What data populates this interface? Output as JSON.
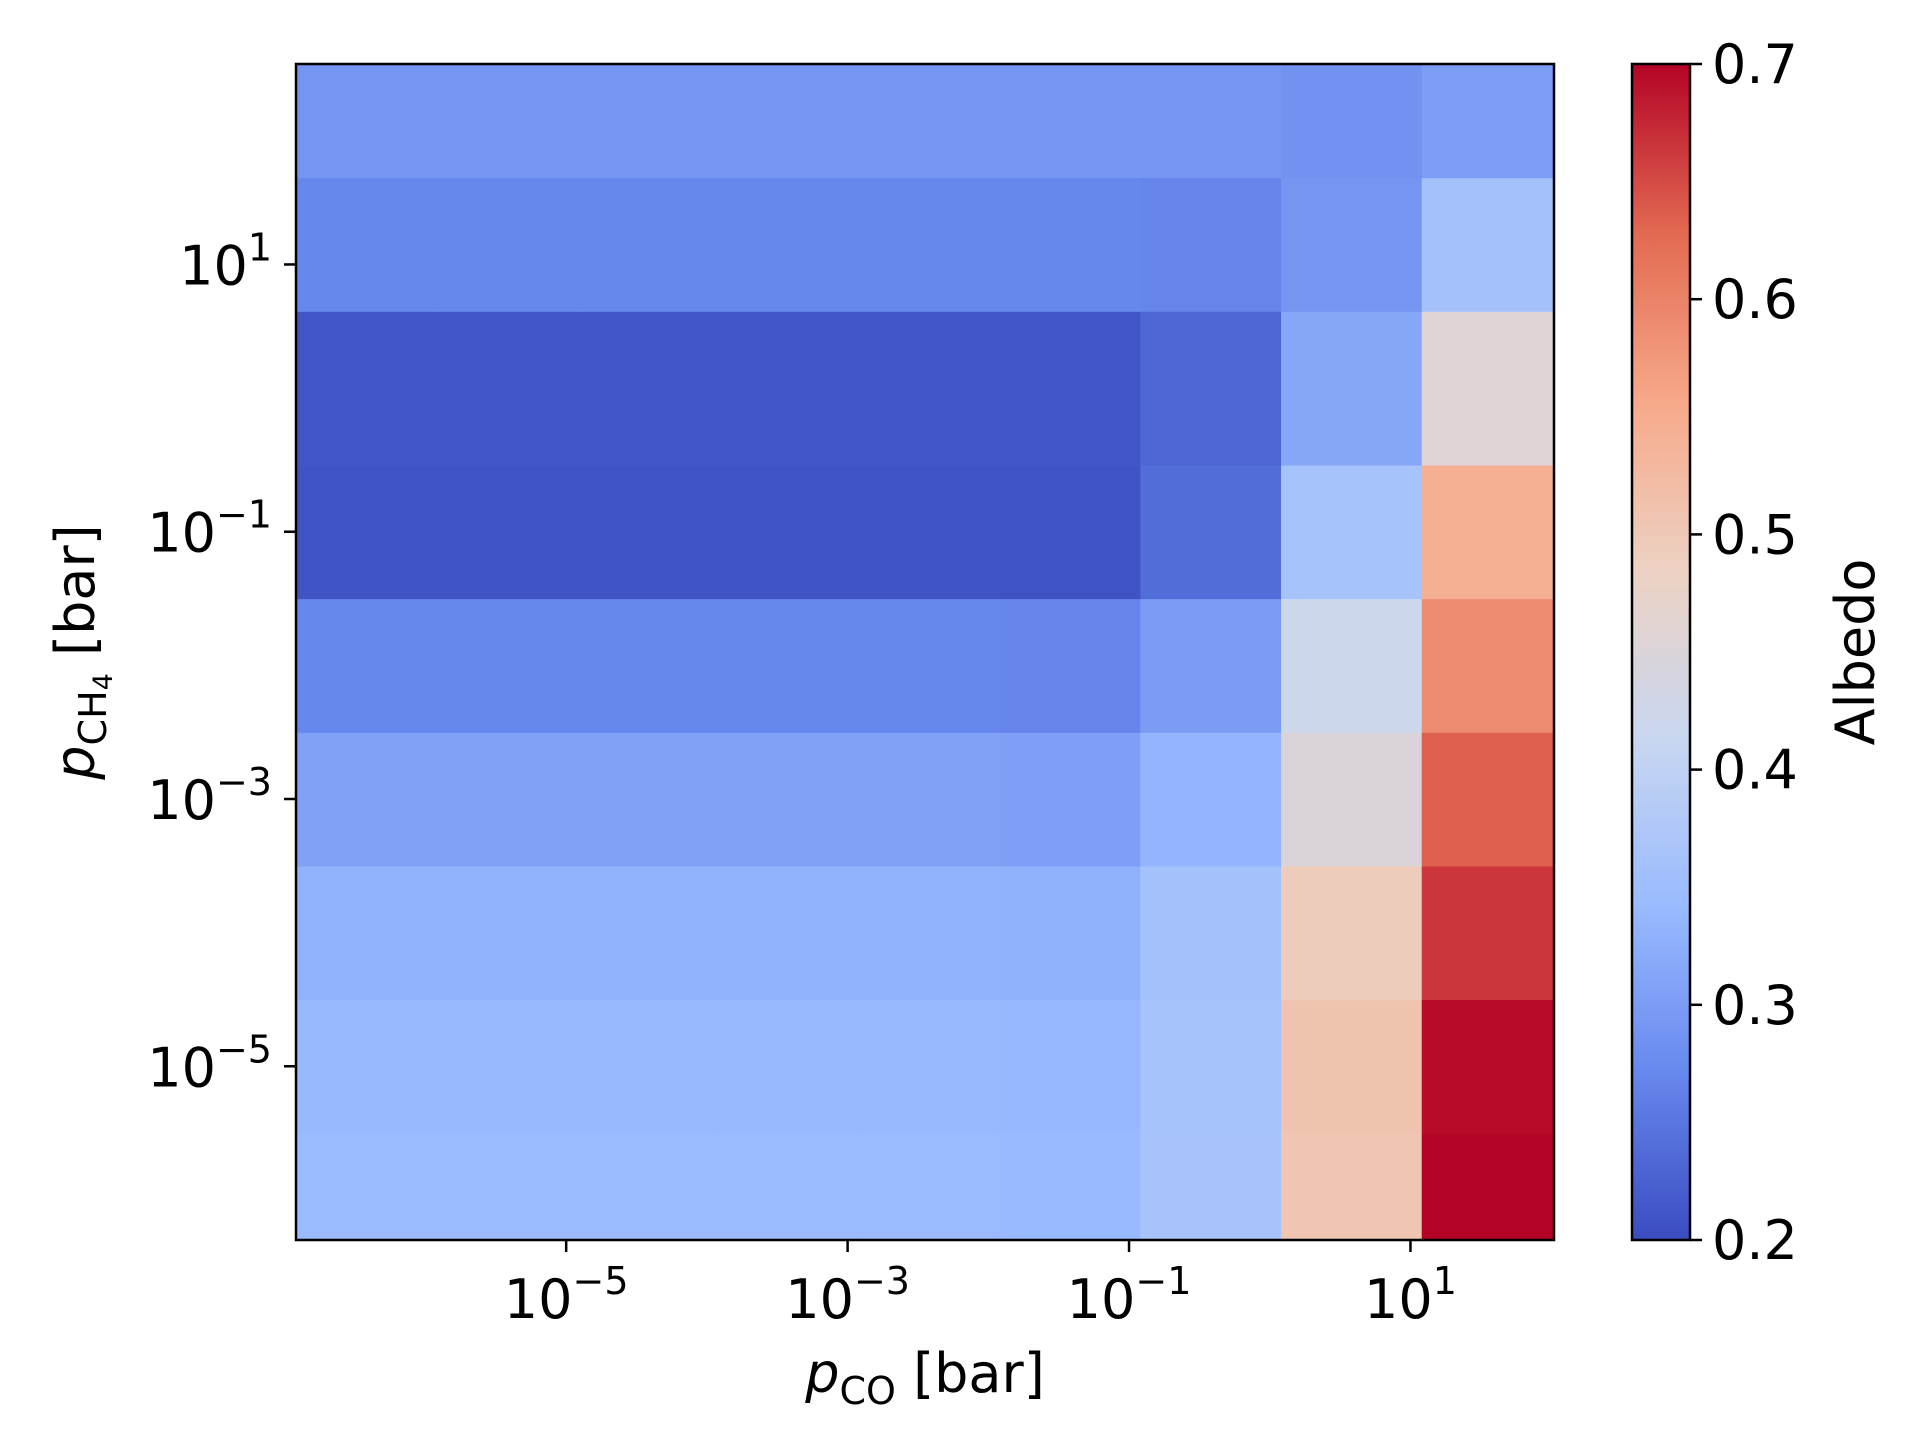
{
  "chart_data": {
    "type": "heatmap",
    "x_scale": "log",
    "y_scale": "log",
    "grid": false,
    "x_cells": [
      -6.42,
      -5.42,
      -4.42,
      -3.42,
      -2.42,
      -1.42,
      -0.42,
      0.58,
      1.58
    ],
    "x_cell_edges_log10": [
      -6.92,
      -5.92,
      -4.92,
      -3.92,
      -2.92,
      -1.92,
      -0.92,
      0.08,
      1.08,
      2.02
    ],
    "y_cell_edges_log10": [
      -6.3,
      -5.5,
      -4.5,
      -3.5,
      -2.5,
      -1.5,
      -0.5,
      0.65,
      1.65,
      2.5
    ],
    "xlim_log10": [
      -6.92,
      2.02
    ],
    "ylim_log10": [
      -6.3,
      2.5
    ],
    "x_ticks": [
      {
        "base": "10",
        "exp": "−5",
        "log10": -5
      },
      {
        "base": "10",
        "exp": "−3",
        "log10": -3
      },
      {
        "base": "10",
        "exp": "−1",
        "log10": -1
      },
      {
        "base": "10",
        "exp": "1",
        "log10": 1
      }
    ],
    "y_ticks": [
      {
        "base": "10",
        "exp": "−5",
        "log10": -5
      },
      {
        "base": "10",
        "exp": "−3",
        "log10": -3
      },
      {
        "base": "10",
        "exp": "−1",
        "log10": -1
      },
      {
        "base": "10",
        "exp": "1",
        "log10": 1
      }
    ],
    "xlabel": {
      "main": "p",
      "sub": "CO",
      "unit": " [bar]"
    },
    "ylabel": {
      "main": "p",
      "sub": "CH",
      "sub2": "4",
      "unit": " [bar]"
    },
    "colorbar": {
      "label": "Albedo",
      "range": [
        0.2,
        0.7
      ],
      "ticks": [
        "0.2",
        "0.3",
        "0.4",
        "0.5",
        "0.6",
        "0.7"
      ],
      "colormap": "coolwarm",
      "colormap_stops": [
        "#3b4cc0",
        "#6788ee",
        "#9abbff",
        "#c9d7f0",
        "#edd1c2",
        "#f7a889",
        "#e26952",
        "#b40426"
      ]
    },
    "z_rows_bottom_to_top": [
      [
        0.343,
        0.343,
        0.343,
        0.343,
        0.343,
        0.341,
        0.364,
        0.505,
        0.7
      ],
      [
        0.34,
        0.34,
        0.34,
        0.34,
        0.34,
        0.338,
        0.362,
        0.51,
        0.695
      ],
      [
        0.33,
        0.33,
        0.33,
        0.33,
        0.33,
        0.328,
        0.358,
        0.495,
        0.665
      ],
      [
        0.306,
        0.306,
        0.306,
        0.306,
        0.306,
        0.303,
        0.334,
        0.448,
        0.635
      ],
      [
        0.27,
        0.27,
        0.27,
        0.27,
        0.27,
        0.268,
        0.3,
        0.42,
        0.59
      ],
      [
        0.208,
        0.208,
        0.208,
        0.208,
        0.208,
        0.208,
        0.238,
        0.362,
        0.545
      ],
      [
        0.212,
        0.212,
        0.212,
        0.212,
        0.212,
        0.212,
        0.232,
        0.315,
        0.455
      ],
      [
        0.27,
        0.27,
        0.27,
        0.27,
        0.27,
        0.27,
        0.268,
        0.29,
        0.358
      ],
      [
        0.29,
        0.29,
        0.29,
        0.29,
        0.29,
        0.29,
        0.29,
        0.285,
        0.302
      ]
    ]
  }
}
